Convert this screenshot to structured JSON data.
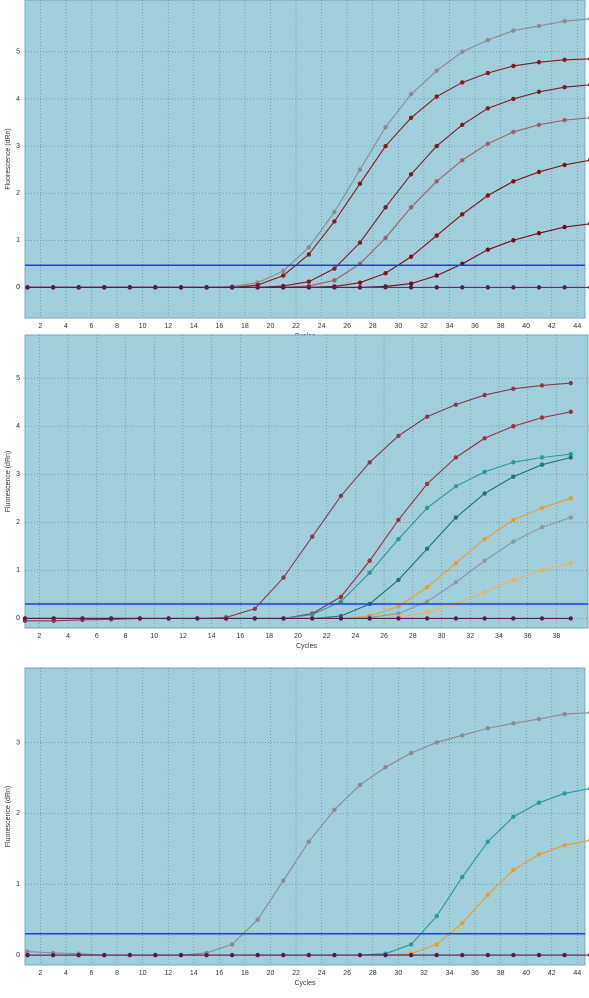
{
  "chart_data": [
    {
      "type": "line",
      "xlabel": "Cycles",
      "ylabel": "Fluorescence (dRn)",
      "grid": true,
      "threshold": 0.47,
      "threshold_color": "#1f3fd0",
      "xlim": [
        0.8,
        44.6
      ],
      "ylim": [
        -0.65,
        6.1
      ],
      "xticks": [
        2,
        4,
        6,
        8,
        10,
        12,
        14,
        16,
        18,
        20,
        22,
        24,
        26,
        28,
        30,
        32,
        34,
        36,
        38,
        40,
        42,
        44
      ],
      "yticks": [
        0,
        1,
        2,
        3,
        4,
        5
      ],
      "x": [
        1,
        3,
        5,
        7,
        9,
        11,
        13,
        15,
        17,
        19,
        21,
        23,
        25,
        27,
        29,
        31,
        33,
        35,
        37,
        39,
        41,
        43,
        45
      ],
      "series": [
        {
          "color": "#8c8c8c",
          "values": [
            0,
            0,
            0,
            0,
            0,
            0,
            0,
            0,
            0.02,
            0.1,
            0.35,
            0.85,
            1.6,
            2.5,
            3.4,
            4.1,
            4.6,
            5.0,
            5.25,
            5.45,
            5.55,
            5.65,
            5.7
          ]
        },
        {
          "color": "#8b1a1a",
          "values": [
            0,
            0,
            0,
            0,
            0,
            0,
            0,
            0,
            0,
            0.05,
            0.25,
            0.7,
            1.4,
            2.2,
            3.0,
            3.6,
            4.05,
            4.35,
            4.55,
            4.7,
            4.78,
            4.83,
            4.85
          ]
        },
        {
          "color": "#7a2020",
          "values": [
            0,
            0,
            0,
            0,
            0,
            0,
            0,
            0,
            0,
            0,
            0.03,
            0.12,
            0.4,
            0.95,
            1.7,
            2.4,
            3.0,
            3.45,
            3.8,
            4.0,
            4.15,
            4.25,
            4.3
          ]
        },
        {
          "color": "#a06060",
          "values": [
            0,
            0,
            0,
            0,
            0,
            0,
            0,
            0,
            0,
            0,
            0,
            0.03,
            0.15,
            0.5,
            1.05,
            1.7,
            2.25,
            2.7,
            3.05,
            3.3,
            3.45,
            3.55,
            3.6
          ]
        },
        {
          "color": "#8b0f0f",
          "values": [
            0,
            0,
            0,
            0,
            0,
            0,
            0,
            0,
            0,
            0,
            0,
            0,
            0.02,
            0.1,
            0.3,
            0.65,
            1.1,
            1.55,
            1.95,
            2.25,
            2.45,
            2.6,
            2.7
          ]
        },
        {
          "color": "#7a0a1a",
          "values": [
            0,
            0,
            0,
            0,
            0,
            0,
            0,
            0,
            0,
            0,
            0,
            0,
            0,
            0,
            0.02,
            0.08,
            0.25,
            0.5,
            0.8,
            1.0,
            1.15,
            1.28,
            1.35
          ]
        },
        {
          "color": "#5a1a5a",
          "values": [
            0,
            0,
            0,
            0,
            0,
            0,
            0,
            0,
            0,
            0,
            0,
            0,
            0,
            0,
            0,
            0,
            0,
            0,
            0,
            0,
            0,
            0,
            0
          ]
        }
      ]
    },
    {
      "type": "line",
      "xlabel": "Cycles",
      "ylabel": "Fluorescence (dRn)",
      "grid": true,
      "threshold": 0.3,
      "threshold_color": "#1f3fd0",
      "xlim": [
        1,
        40.2
      ],
      "ylim": [
        -0.2,
        5.9
      ],
      "xticks": [
        2,
        4,
        6,
        8,
        10,
        12,
        14,
        16,
        18,
        20,
        22,
        24,
        26,
        28,
        30,
        32,
        34,
        36,
        38
      ],
      "yticks": [
        0,
        1,
        2,
        3,
        4,
        5
      ],
      "x": [
        1,
        3,
        5,
        7,
        9,
        11,
        13,
        15,
        17,
        19,
        21,
        23,
        25,
        27,
        29,
        31,
        33,
        35,
        37,
        39
      ],
      "series": [
        {
          "color": "#8b3a4a",
          "values": [
            -0.05,
            -0.05,
            -0.03,
            -0.02,
            0,
            0,
            0,
            0.02,
            0.2,
            0.85,
            1.7,
            2.55,
            3.25,
            3.8,
            4.2,
            4.45,
            4.65,
            4.78,
            4.85,
            4.9
          ]
        },
        {
          "color": "#a0303a",
          "values": [
            0,
            0,
            0,
            0,
            0,
            0,
            0,
            0,
            0,
            0,
            0.1,
            0.45,
            1.2,
            2.05,
            2.8,
            3.35,
            3.75,
            4.0,
            4.18,
            4.3
          ]
        },
        {
          "color": "#2a9a9a",
          "values": [
            0,
            0,
            0,
            0,
            0,
            0,
            0,
            0,
            0,
            0,
            0.08,
            0.35,
            0.95,
            1.65,
            2.3,
            2.75,
            3.05,
            3.25,
            3.35,
            3.42
          ]
        },
        {
          "color": "#1a7a6a",
          "values": [
            0,
            0,
            0,
            0,
            0,
            0,
            0,
            0,
            0,
            0,
            0,
            0.05,
            0.3,
            0.8,
            1.45,
            2.1,
            2.6,
            2.95,
            3.2,
            3.35
          ]
        },
        {
          "color": "#f09a28",
          "values": [
            0,
            0,
            0,
            0,
            0,
            0,
            0,
            0,
            0,
            0,
            0,
            0,
            0.05,
            0.25,
            0.65,
            1.15,
            1.65,
            2.05,
            2.3,
            2.5
          ]
        },
        {
          "color": "#8c9a9a",
          "values": [
            0,
            0,
            0,
            0,
            0,
            0,
            0,
            0,
            0,
            0,
            0,
            0,
            0.02,
            0.1,
            0.35,
            0.75,
            1.2,
            1.6,
            1.9,
            2.1
          ]
        },
        {
          "color": "#f0b050",
          "values": [
            0,
            0,
            0,
            0,
            0,
            0,
            0,
            0,
            0,
            0,
            0,
            0,
            0,
            0.03,
            0.12,
            0.3,
            0.55,
            0.8,
            1.0,
            1.15
          ]
        },
        {
          "color": "#5a1a5a",
          "values": [
            0,
            0,
            0,
            0,
            0,
            0,
            0,
            0,
            0,
            0,
            0,
            0,
            0,
            0,
            0,
            0,
            0,
            0,
            0,
            0
          ]
        }
      ]
    },
    {
      "type": "line",
      "xlabel": "Cycles",
      "ylabel": "Fluorescence (dRn)",
      "grid": true,
      "threshold": 0.3,
      "threshold_color": "#1f3fd0",
      "xlim": [
        0.8,
        44.6
      ],
      "ylim": [
        -0.14,
        4.05
      ],
      "xticks": [
        2,
        4,
        6,
        8,
        10,
        12,
        14,
        16,
        18,
        20,
        22,
        24,
        26,
        28,
        30,
        32,
        34,
        36,
        38,
        40,
        42,
        44
      ],
      "yticks": [
        0,
        1,
        2,
        3
      ],
      "x": [
        1,
        3,
        5,
        7,
        9,
        11,
        13,
        15,
        17,
        19,
        21,
        23,
        25,
        27,
        29,
        31,
        33,
        35,
        37,
        39,
        41,
        43,
        45
      ],
      "series": [
        {
          "color": "#8c8c8c",
          "values": [
            0.05,
            0.03,
            0.02,
            0,
            0,
            0,
            0,
            0.03,
            0.15,
            0.5,
            1.05,
            1.6,
            2.05,
            2.4,
            2.65,
            2.85,
            3.0,
            3.1,
            3.2,
            3.27,
            3.33,
            3.4,
            3.42
          ]
        },
        {
          "color": "#2a9a9a",
          "values": [
            0,
            0,
            0,
            0,
            0,
            0,
            0,
            0,
            0,
            0,
            0,
            0,
            0,
            0,
            0.02,
            0.15,
            0.55,
            1.1,
            1.6,
            1.95,
            2.15,
            2.28,
            2.35
          ]
        },
        {
          "color": "#f09a28",
          "values": [
            0,
            0,
            0,
            0,
            0,
            0,
            0,
            0,
            0,
            0,
            0,
            0,
            0,
            0,
            0,
            0.02,
            0.15,
            0.45,
            0.85,
            1.2,
            1.42,
            1.55,
            1.62
          ]
        },
        {
          "color": "#5a1a5a",
          "values": [
            0,
            0,
            0,
            0,
            0,
            0,
            0,
            0,
            0,
            0,
            0,
            0,
            0,
            0,
            0,
            0,
            0,
            0,
            0,
            0,
            0,
            0,
            0
          ]
        }
      ]
    }
  ]
}
